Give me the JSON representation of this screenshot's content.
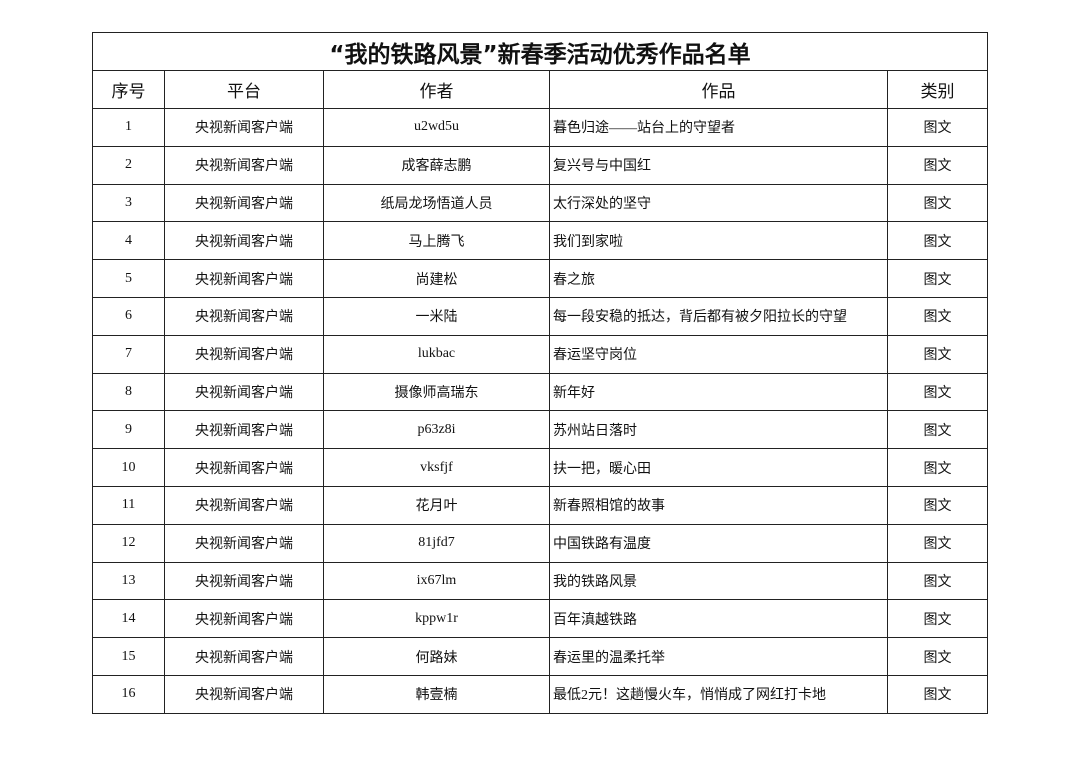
{
  "title": "“我的铁路风景”新春季活动优秀作品名单",
  "headers": [
    "序号",
    "平台",
    "作者",
    "作品",
    "类别"
  ],
  "rows": [
    {
      "no": "1",
      "platform": "央视新闻客户端",
      "author": "u2wd5u",
      "work": "暮色归途——站台上的守望者",
      "category": "图文"
    },
    {
      "no": "2",
      "platform": "央视新闻客户端",
      "author": "成客薛志鹏",
      "work": "复兴号与中国红",
      "category": "图文"
    },
    {
      "no": "3",
      "platform": "央视新闻客户端",
      "author": "纸局龙场悟道人员",
      "work": "太行深处的坚守",
      "category": "图文"
    },
    {
      "no": "4",
      "platform": "央视新闻客户端",
      "author": "马上腾飞",
      "work": "我们到家啦",
      "category": "图文"
    },
    {
      "no": "5",
      "platform": "央视新闻客户端",
      "author": "尚建松",
      "work": "春之旅",
      "category": "图文"
    },
    {
      "no": "6",
      "platform": "央视新闻客户端",
      "author": "一米陆",
      "work": "每一段安稳的抵达，背后都有被夕阳拉长的守望",
      "category": "图文"
    },
    {
      "no": "7",
      "platform": "央视新闻客户端",
      "author": "lukbac",
      "work": "春运坚守岗位",
      "category": "图文"
    },
    {
      "no": "8",
      "platform": "央视新闻客户端",
      "author": "摄像师高瑞东",
      "work": "新年好",
      "category": "图文"
    },
    {
      "no": "9",
      "platform": "央视新闻客户端",
      "author": "p63z8i",
      "work": "苏州站日落时",
      "category": "图文"
    },
    {
      "no": "10",
      "platform": "央视新闻客户端",
      "author": "vksfjf",
      "work": "扶一把，暖心田",
      "category": "图文"
    },
    {
      "no": "11",
      "platform": "央视新闻客户端",
      "author": "花月叶",
      "work": "新春照相馆的故事",
      "category": "图文"
    },
    {
      "no": "12",
      "platform": "央视新闻客户端",
      "author": "81jfd7",
      "work": "中国铁路有温度",
      "category": "图文"
    },
    {
      "no": "13",
      "platform": "央视新闻客户端",
      "author": "ix67lm",
      "work": "我的铁路风景",
      "category": "图文"
    },
    {
      "no": "14",
      "platform": "央视新闻客户端",
      "author": "kppw1r",
      "work": "百年滇越铁路",
      "category": "图文"
    },
    {
      "no": "15",
      "platform": "央视新闻客户端",
      "author": "何路妹",
      "work": "春运里的温柔托举",
      "category": "图文"
    },
    {
      "no": "16",
      "platform": "央视新闻客户端",
      "author": "韩壹楠",
      "work": "最低2元！这趟慢火车，悄悄成了网红打卡地",
      "category": "图文"
    }
  ]
}
